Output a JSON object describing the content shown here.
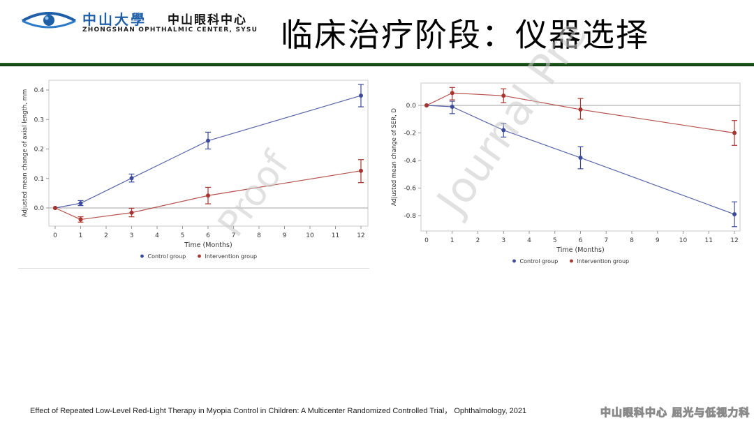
{
  "header": {
    "logo": {
      "university_cn": "中山大學",
      "center_cn": "中山眼科中心",
      "center_en": "ZHONGSHAN OPHTHALMIC CENTER, SYSU",
      "icon": "eye-logo-icon"
    },
    "title": "临床治疗阶段：仪器选择",
    "rule_color": "#1a4d1a"
  },
  "watermarks": {
    "left": "Proof",
    "right": "Journal Pre"
  },
  "citation": "Effect of Repeated Low-Level Red-Light Therapy in Myopia Control in Children: A Multicenter Randomized Controlled Trial， Ophthalmology, 2021",
  "footer_brand": "中山眼科中心 屈光与低视力科",
  "colors": {
    "control": "#3b4a9a",
    "intervention": "#a8342e",
    "axis": "#b0b0b0",
    "text": "#333333"
  },
  "chart_data": [
    {
      "type": "line",
      "title": "",
      "xlabel": "Time (Months)",
      "ylabel": "Adjusted mean change of axial length, mm",
      "x_ticks": [
        "0",
        "1",
        "2",
        "3",
        "4",
        "5",
        "6",
        "7",
        "8",
        "9",
        "10",
        "11",
        "12"
      ],
      "y_ticks": [
        "0.0",
        "0.1",
        "0.2",
        "0.3",
        "0.4"
      ],
      "xlim": [
        0,
        12
      ],
      "ylim": [
        -0.06,
        0.43
      ],
      "reference_line": 0.0,
      "grid": false,
      "legend_position": "bottom",
      "legend": [
        "Control group",
        "Intervention group"
      ],
      "x": [
        0,
        1,
        3,
        6,
        12
      ],
      "series": [
        {
          "name": "Control group",
          "color": "#3b4a9a",
          "values": [
            0.0,
            0.016,
            0.101,
            0.228,
            0.381
          ],
          "ci_low": [
            0.0,
            0.008,
            0.088,
            0.2,
            0.343
          ],
          "ci_high": [
            0.0,
            0.025,
            0.115,
            0.257,
            0.419
          ]
        },
        {
          "name": "Intervention group",
          "color": "#a8342e",
          "values": [
            0.0,
            -0.039,
            -0.016,
            0.042,
            0.126
          ],
          "ci_low": [
            0.0,
            -0.048,
            -0.03,
            0.014,
            0.086
          ],
          "ci_high": [
            0.0,
            -0.03,
            -0.001,
            0.07,
            0.164
          ]
        }
      ]
    },
    {
      "type": "line",
      "title": "",
      "xlabel": "Time (Months)",
      "ylabel": "Adjusted mean change of SER, D",
      "x_ticks": [
        "0",
        "1",
        "2",
        "3",
        "4",
        "5",
        "6",
        "7",
        "8",
        "9",
        "10",
        "11",
        "12"
      ],
      "y_ticks": [
        "0.0",
        "-0.2",
        "-0.4",
        "-0.6",
        "-0.8"
      ],
      "xlim": [
        0,
        12
      ],
      "ylim": [
        -0.91,
        0.16
      ],
      "reference_line": 0.0,
      "grid": false,
      "legend_position": "bottom",
      "legend": [
        "Control group",
        "Intervention group"
      ],
      "x": [
        0,
        1,
        3,
        6,
        12
      ],
      "series": [
        {
          "name": "Control group",
          "color": "#3b4a9a",
          "values": [
            0.0,
            -0.01,
            -0.18,
            -0.38,
            -0.79
          ],
          "ci_low": [
            0.0,
            -0.06,
            -0.23,
            -0.46,
            -0.88
          ],
          "ci_high": [
            0.0,
            0.03,
            -0.13,
            -0.3,
            -0.7
          ]
        },
        {
          "name": "Intervention group",
          "color": "#a8342e",
          "values": [
            0.0,
            0.09,
            0.07,
            -0.03,
            -0.2
          ],
          "ci_low": [
            0.0,
            0.04,
            0.02,
            -0.1,
            -0.29
          ],
          "ci_high": [
            0.0,
            0.13,
            0.12,
            0.05,
            -0.11
          ]
        }
      ]
    }
  ]
}
